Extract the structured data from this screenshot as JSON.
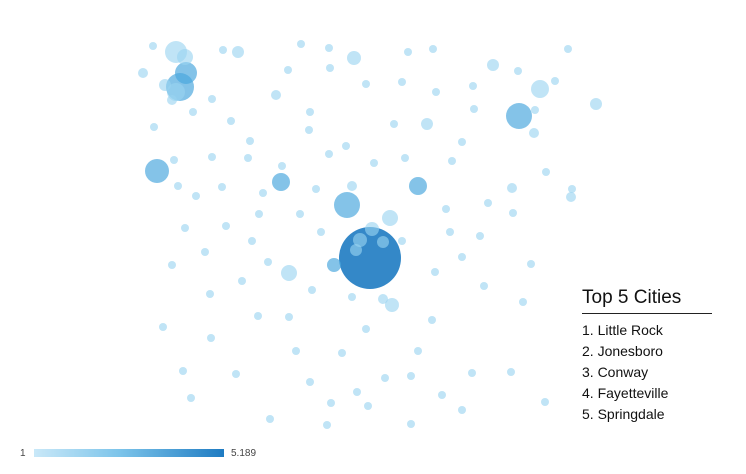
{
  "map": {
    "colors": {
      "light": "#9ad3f1",
      "medium": "#4aa6dd",
      "dark": "#1e7bc2"
    },
    "cities": [
      {
        "city": "Little Rock",
        "value": 5.189,
        "rank": 1
      }
    ]
  },
  "legend": {
    "title": "Top 5 Cities",
    "items": [
      "1. Little Rock",
      "2. Jonesboro",
      "3. Conway",
      "4. Fayetteville",
      "5. Springdale"
    ]
  },
  "scale": {
    "min_label": "1",
    "max_label": "5.189",
    "colors": [
      "#c9e8f8",
      "#7cc4ea",
      "#1e7bc2"
    ]
  }
}
